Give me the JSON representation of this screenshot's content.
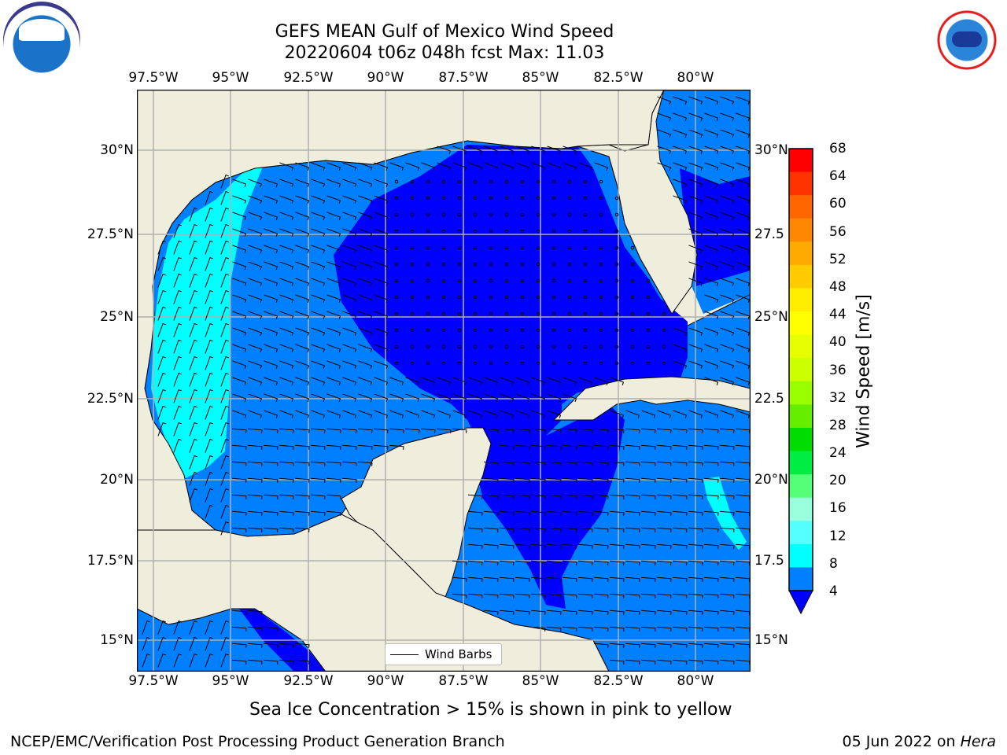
{
  "header": {
    "title_line1": "GEFS MEAN Gulf of Mexico Wind Speed",
    "title_line2": "20220604 t06z 048h fcst   Max: 11.03"
  },
  "logos": {
    "left": "noaa-logo",
    "right": "national-weather-service-logo"
  },
  "map": {
    "lon_labels": [
      "97.5°W",
      "95°W",
      "92.5°W",
      "90°W",
      "87.5°W",
      "85°W",
      "82.5°W",
      "80°W"
    ],
    "lat_labels_left": [
      "30°N",
      "27.5°N",
      "25°N",
      "22.5°N",
      "20°N",
      "17.5°N",
      "15°N"
    ],
    "lat_labels_right": [
      "30°N",
      "27.5",
      "25°N",
      "22.5",
      "20°N",
      "17.5",
      "15°N"
    ],
    "legend_label": "Wind Barbs",
    "colors": {
      "land": "#efeedd",
      "wind_4_8": "#0080ff",
      "wind_lt_4": "#0000ff",
      "wind_8_12": "#00ffff",
      "grid": "#b0b0b0"
    }
  },
  "colorbar": {
    "label": "Wind Speed [m/s]",
    "ticks": [
      "68",
      "64",
      "60",
      "56",
      "52",
      "48",
      "44",
      "40",
      "36",
      "32",
      "28",
      "24",
      "20",
      "16",
      "12",
      "8",
      "4"
    ],
    "colors": [
      "#ff0000",
      "#ff3300",
      "#ff6600",
      "#ff8800",
      "#ffaa00",
      "#ffcc00",
      "#ffee00",
      "#ffff00",
      "#e5ff00",
      "#ccff00",
      "#99ff00",
      "#66ee00",
      "#00dd00",
      "#00ee44",
      "#55ff77",
      "#99ffdd",
      "#55ffff",
      "#00ffff",
      "#0080ff"
    ],
    "under_color": "#0000ff"
  },
  "notes": {
    "sea_ice": "Sea Ice Concentration > 15% is shown in pink to yellow"
  },
  "footer": {
    "left": "NCEP/EMC/Verification Post Processing Product Generation Branch",
    "right_date": "05 Jun 2022 on ",
    "right_host": "Hera"
  }
}
